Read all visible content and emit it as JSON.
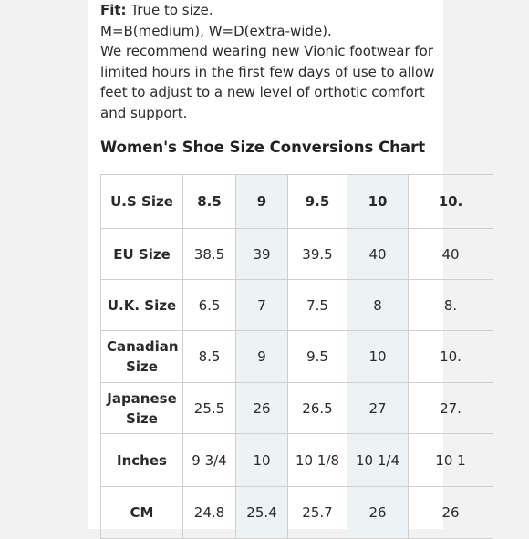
{
  "fit": {
    "label": "Fit:",
    "value": " True to size.",
    "widths": "M=B(medium), W=D(extra-wide).",
    "note": "We recommend wearing new Vionic footwear for limited hours in the first few days of use to allow feet to adjust to a new level of orthotic comfort and support."
  },
  "chart": {
    "title": "Women's Shoe Size Conversions Chart",
    "highlight_color": "#edf2f5",
    "rows": [
      {
        "label": "U.S Size",
        "cells": [
          "8.5",
          "9",
          "9.5",
          "10",
          "10."
        ]
      },
      {
        "label": "EU Size",
        "cells": [
          "38.5",
          "39",
          "39.5",
          "40",
          "40"
        ]
      },
      {
        "label": "U.K. Size",
        "cells": [
          "6.5",
          "7",
          "7.5",
          "8",
          "8."
        ]
      },
      {
        "label": "Canadian Size",
        "cells": [
          "8.5",
          "9",
          "9.5",
          "10",
          "10."
        ]
      },
      {
        "label": "Japanese Size",
        "cells": [
          "25.5",
          "26",
          "26.5",
          "27",
          "27."
        ]
      },
      {
        "label": "Inches",
        "cells": [
          "9 3/4",
          "10",
          "10 1/8",
          "10 1/4",
          "10 1"
        ]
      },
      {
        "label": "CM",
        "cells": [
          "24.8",
          "25.4",
          "25.7",
          "26",
          "26"
        ]
      }
    ]
  }
}
